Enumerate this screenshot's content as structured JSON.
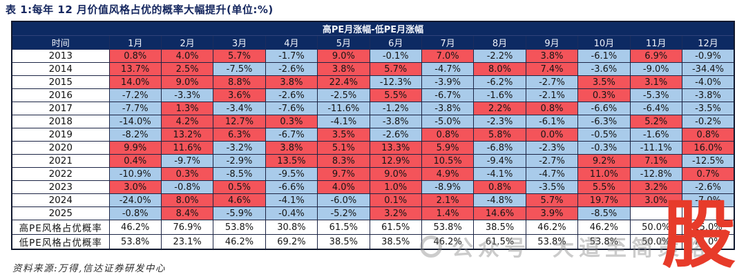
{
  "title": "表 1:每年 12 月价值风格占优的概率大幅提升(单位:%)",
  "source_note": "资料来源:万得,信达证券研发中心",
  "colors": {
    "header_bg": "#0d2a63",
    "positive_cell_bg": "#f4545a",
    "negative_cell_bg": "#a9cbea",
    "title_text": "#14265e",
    "watermark_red": "#e73b2a",
    "watermark_gray": "#8d8d8d"
  },
  "table": {
    "group_header": "高PE月涨幅-低PE月涨幅",
    "columns": [
      "时间",
      "1月",
      "2月",
      "3月",
      "4月",
      "5月",
      "6月",
      "7月",
      "8月",
      "9月",
      "10月",
      "11月",
      "12月"
    ],
    "year_rows": [
      {
        "label": "2013",
        "values": [
          "0.8%",
          "4.0%",
          "5.7%",
          "-1.7%",
          "9.0%",
          "-0.1%",
          "7.0%",
          "-2.2%",
          "3.8%",
          "-6.1%",
          "6.9%",
          "-0.9%"
        ]
      },
      {
        "label": "2014",
        "values": [
          "13.7%",
          "2.5%",
          "-7.5%",
          "-2.6%",
          "3.8%",
          "5.7%",
          "-4.7%",
          "8.0%",
          "7.4%",
          "-3.6%",
          "-9.0%",
          "-34.4%"
        ]
      },
      {
        "label": "2015",
        "values": [
          "14.0%",
          "9.0%",
          "8.8%",
          "3.8%",
          "22.4%",
          "-12.3%",
          "-3.9%",
          "-6.2%",
          "-2.7%",
          "3.5%",
          "3.1%",
          "-4.0%"
        ]
      },
      {
        "label": "2016",
        "values": [
          "-7.2%",
          "-3.3%",
          "3.6%",
          "-2.6%",
          "-2.5%",
          "5.5%",
          "-6.7%",
          "-1.6%",
          "-2.1%",
          "0.3%",
          "-5.3%",
          "-3.8%"
        ]
      },
      {
        "label": "2017",
        "values": [
          "-7.7%",
          "1.3%",
          "-3.4%",
          "-7.6%",
          "-11.6%",
          "-1.2%",
          "-3.8%",
          "2.2%",
          "0.8%",
          "-6.6%",
          "-6.4%",
          "-3.5%"
        ]
      },
      {
        "label": "2018",
        "values": [
          "-14.0%",
          "4.2%",
          "12.7%",
          "0.3%",
          "-4.1%",
          "-3.8%",
          "-5.0%",
          "-2.3%",
          "-6.1%",
          "-6.3%",
          "5.2%",
          "-0.2%"
        ]
      },
      {
        "label": "2019",
        "values": [
          "-8.2%",
          "13.2%",
          "6.3%",
          "-6.7%",
          "3.5%",
          "-2.6%",
          "0.8%",
          "5.8%",
          "0.0%",
          "-0.5%",
          "-1.6%",
          "0.8%"
        ]
      },
      {
        "label": "2020",
        "values": [
          "9.9%",
          "11.6%",
          "-3.2%",
          "3.8%",
          "5.1%",
          "13.3%",
          "5.9%",
          "-6.8%",
          "-2.3%",
          "-0.3%",
          "-11.1%",
          "16.0%"
        ]
      },
      {
        "label": "2021",
        "values": [
          "0.4%",
          "-9.7%",
          "-2.9%",
          "13.5%",
          "8.3%",
          "12.9%",
          "10.5%",
          "-9.4%",
          "-2.7%",
          "9.2%",
          "7.1%",
          "-12.5%"
        ]
      },
      {
        "label": "2022",
        "values": [
          "-10.9%",
          "0.3%",
          "-8.5%",
          "-9.5%",
          "9.7%",
          "9.0%",
          "4.9%",
          "-4.1%",
          "-4.7%",
          "11.0%",
          "-12.8%",
          "0.7%"
        ]
      },
      {
        "label": "2023",
        "values": [
          "3.0%",
          "-0.8%",
          "0.5%",
          "-6.6%",
          "4.0%",
          "1.0%",
          "-8.9%",
          "0.8%",
          "-3.5%",
          "5.5%",
          "3.2%",
          "-2.6%"
        ]
      },
      {
        "label": "2024",
        "values": [
          "-24.0%",
          "8.0%",
          "4.6%",
          "-4.1%",
          "-6.0%",
          "0.1%",
          "2.1%",
          "-4.8%",
          "5.7%",
          "19.7%",
          "3.0%",
          "-7.0%"
        ]
      },
      {
        "label": "2025",
        "values": [
          "-0.8%",
          "8.4%",
          "-5.9%",
          "-0.4%",
          "-5.2%",
          "3.2%",
          "1.4%",
          "14.6%",
          "3.9%",
          "-8.5%",
          "",
          ""
        ]
      }
    ],
    "summary_rows": [
      {
        "label": "高PE风格占优概率",
        "values": [
          "46.2%",
          "76.9%",
          "53.8%",
          "30.8%",
          "61.5%",
          "61.5%",
          "53.8%",
          "38.5%",
          "46.2%",
          "46.2%",
          "50.0%",
          "25.0%"
        ]
      },
      {
        "label": "低PE风格占优概率",
        "values": [
          "53.8%",
          "23.1%",
          "46.2%",
          "69.2%",
          "38.5%",
          "38.5%",
          "46.2%",
          "61.5%",
          "53.8%",
          "53.8%",
          "50.0%",
          "75.0%"
        ]
      }
    ]
  },
  "watermarks": {
    "gray_prefix": "公众号",
    "gray_name": "大道至简策略",
    "red_char": "股"
  }
}
